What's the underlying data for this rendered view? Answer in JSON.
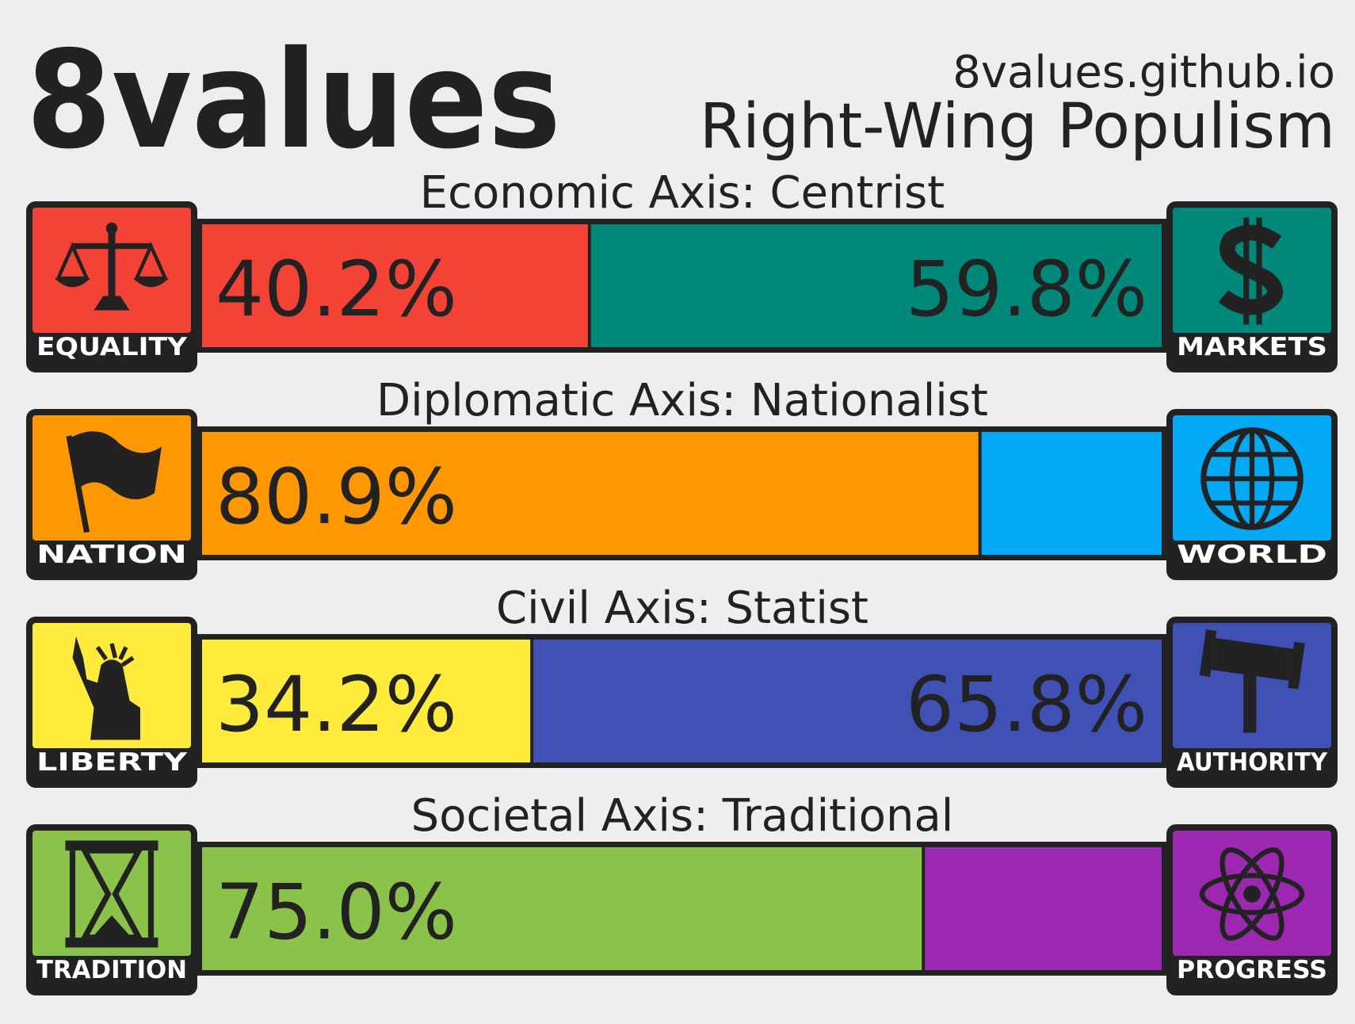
{
  "header": {
    "title": "8values",
    "site": "8values.github.io",
    "ideology": "Right-Wing Populism"
  },
  "chart_data": [
    {
      "type": "stacked-bar",
      "title": "Economic Axis: Centrist",
      "xlim": [
        0,
        100
      ],
      "series": [
        {
          "name": "EQUALITY",
          "color": "#f44336",
          "values": [
            40.2
          ],
          "value_labels": [
            "40.2%"
          ]
        },
        {
          "name": "MARKETS",
          "color": "#00897b",
          "values": [
            59.8
          ],
          "value_labels": [
            "59.8%"
          ]
        }
      ]
    },
    {
      "type": "stacked-bar",
      "title": "Diplomatic Axis: Nationalist",
      "xlim": [
        0,
        100
      ],
      "series": [
        {
          "name": "NATION",
          "color": "#ff9800",
          "values": [
            80.9
          ],
          "value_labels": [
            "80.9%"
          ]
        },
        {
          "name": "WORLD",
          "color": "#03a9f4",
          "values": [
            19.1
          ]
        }
      ]
    },
    {
      "type": "stacked-bar",
      "title": "Civil Axis: Statist",
      "xlim": [
        0,
        100
      ],
      "series": [
        {
          "name": "LIBERTY",
          "color": "#ffeb3b",
          "values": [
            34.2
          ],
          "value_labels": [
            "34.2%"
          ]
        },
        {
          "name": "AUTHORITY",
          "color": "#3f51b5",
          "values": [
            65.8
          ],
          "value_labels": [
            "65.8%"
          ]
        }
      ]
    },
    {
      "type": "stacked-bar",
      "title": "Societal Axis: Traditional",
      "xlim": [
        0,
        100
      ],
      "series": [
        {
          "name": "TRADITION",
          "color": "#8bc34a",
          "values": [
            75.0
          ],
          "value_labels": [
            "75.0%"
          ]
        },
        {
          "name": "PROGRESS",
          "color": "#9c27b0",
          "values": [
            25.0
          ]
        }
      ]
    }
  ]
}
